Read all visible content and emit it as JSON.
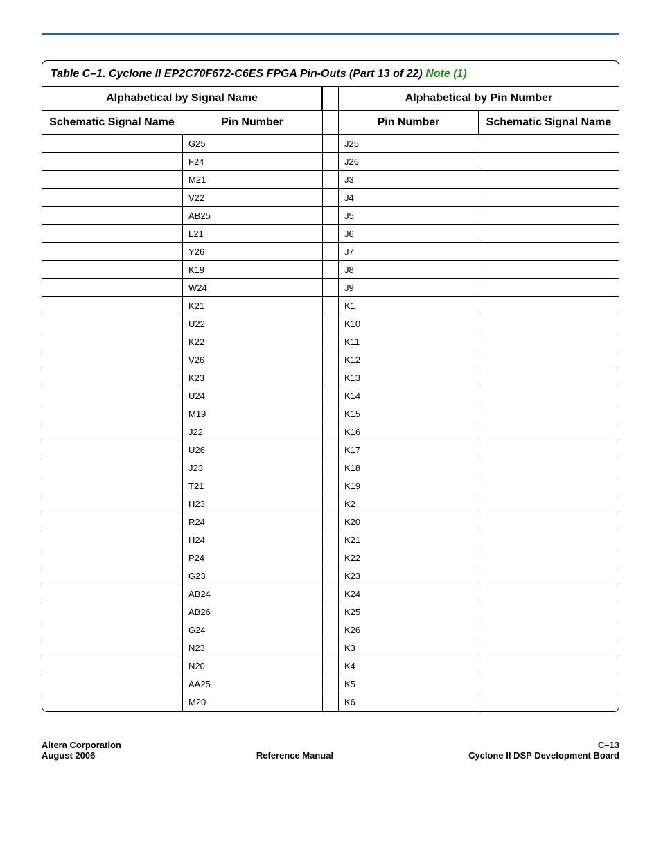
{
  "table": {
    "title_prefix": "Table C–1. Cyclone II EP2C70F672-C6ES FPGA Pin-Outs  (Part 13 of 22) ",
    "note_text": "Note (1)",
    "group_left": "Alphabetical by Signal Name",
    "group_right": "Alphabetical by Pin Number",
    "col_schematic": "Schematic Signal Name",
    "col_pin": "Pin Number",
    "rows": [
      {
        "l_sig": "",
        "l_pin": "G25",
        "r_pin": "J25",
        "r_sig": ""
      },
      {
        "l_sig": "",
        "l_pin": "F24",
        "r_pin": "J26",
        "r_sig": ""
      },
      {
        "l_sig": "",
        "l_pin": "M21",
        "r_pin": "J3",
        "r_sig": ""
      },
      {
        "l_sig": "",
        "l_pin": "V22",
        "r_pin": "J4",
        "r_sig": ""
      },
      {
        "l_sig": "",
        "l_pin": "AB25",
        "r_pin": "J5",
        "r_sig": ""
      },
      {
        "l_sig": "",
        "l_pin": "L21",
        "r_pin": "J6",
        "r_sig": ""
      },
      {
        "l_sig": "",
        "l_pin": "Y26",
        "r_pin": "J7",
        "r_sig": ""
      },
      {
        "l_sig": "",
        "l_pin": "K19",
        "r_pin": "J8",
        "r_sig": ""
      },
      {
        "l_sig": "",
        "l_pin": "W24",
        "r_pin": "J9",
        "r_sig": ""
      },
      {
        "l_sig": "",
        "l_pin": "K21",
        "r_pin": "K1",
        "r_sig": ""
      },
      {
        "l_sig": "",
        "l_pin": "U22",
        "r_pin": "K10",
        "r_sig": ""
      },
      {
        "l_sig": "",
        "l_pin": "K22",
        "r_pin": "K11",
        "r_sig": ""
      },
      {
        "l_sig": "",
        "l_pin": "V26",
        "r_pin": "K12",
        "r_sig": ""
      },
      {
        "l_sig": "",
        "l_pin": "K23",
        "r_pin": "K13",
        "r_sig": ""
      },
      {
        "l_sig": "",
        "l_pin": "U24",
        "r_pin": "K14",
        "r_sig": ""
      },
      {
        "l_sig": "",
        "l_pin": "M19",
        "r_pin": "K15",
        "r_sig": ""
      },
      {
        "l_sig": "",
        "l_pin": "J22",
        "r_pin": "K16",
        "r_sig": ""
      },
      {
        "l_sig": "",
        "l_pin": "U26",
        "r_pin": "K17",
        "r_sig": ""
      },
      {
        "l_sig": "",
        "l_pin": "J23",
        "r_pin": "K18",
        "r_sig": ""
      },
      {
        "l_sig": "",
        "l_pin": "T21",
        "r_pin": "K19",
        "r_sig": ""
      },
      {
        "l_sig": "",
        "l_pin": "H23",
        "r_pin": "K2",
        "r_sig": ""
      },
      {
        "l_sig": "",
        "l_pin": "R24",
        "r_pin": "K20",
        "r_sig": ""
      },
      {
        "l_sig": "",
        "l_pin": "H24",
        "r_pin": "K21",
        "r_sig": ""
      },
      {
        "l_sig": "",
        "l_pin": "P24",
        "r_pin": "K22",
        "r_sig": ""
      },
      {
        "l_sig": "",
        "l_pin": "G23",
        "r_pin": "K23",
        "r_sig": ""
      },
      {
        "l_sig": "",
        "l_pin": "AB24",
        "r_pin": "K24",
        "r_sig": ""
      },
      {
        "l_sig": "",
        "l_pin": "AB26",
        "r_pin": "K25",
        "r_sig": ""
      },
      {
        "l_sig": "",
        "l_pin": "G24",
        "r_pin": "K26",
        "r_sig": ""
      },
      {
        "l_sig": "",
        "l_pin": "N23",
        "r_pin": "K3",
        "r_sig": ""
      },
      {
        "l_sig": "",
        "l_pin": "N20",
        "r_pin": "K4",
        "r_sig": ""
      },
      {
        "l_sig": "",
        "l_pin": "AA25",
        "r_pin": "K5",
        "r_sig": ""
      },
      {
        "l_sig": "",
        "l_pin": "M20",
        "r_pin": "K6",
        "r_sig": ""
      }
    ]
  },
  "footer": {
    "left_line1": "Altera Corporation",
    "left_line2": "August 2006",
    "center": "Reference Manual",
    "right_line1": "C–13",
    "right_line2": "Cyclone II DSP Development Board"
  },
  "style": {
    "rule_color": "#2b5ea7",
    "note_color": "#1a8a1a",
    "border_color": "#000000",
    "bg": "#ffffff",
    "title_fontsize": 16,
    "header_fontsize": 16,
    "body_fontsize": 13,
    "footer_fontsize": 13
  }
}
